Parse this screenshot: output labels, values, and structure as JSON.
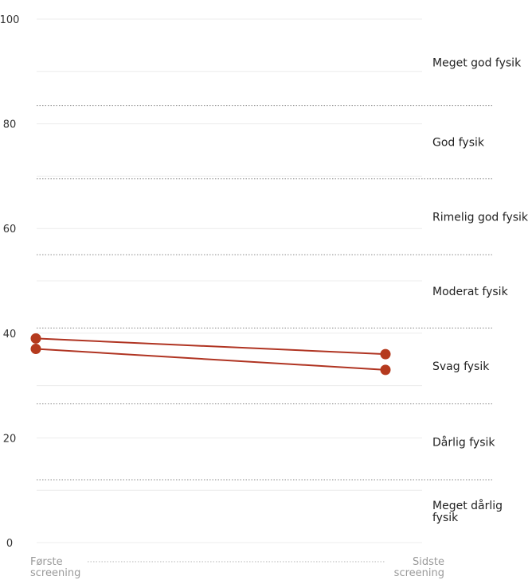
{
  "chart_data": {
    "type": "line",
    "ylim": [
      0,
      100
    ],
    "y_ticks": [
      "0",
      "20",
      "40",
      "60",
      "80",
      "100"
    ],
    "categories": [
      [
        "Første",
        "screening"
      ],
      [
        "Sidste",
        "screening"
      ]
    ],
    "series": [
      {
        "values": [
          39,
          36
        ]
      },
      {
        "values": [
          37,
          33
        ]
      }
    ],
    "bands": [
      {
        "label": [
          "Meget god fysik"
        ],
        "from": 83.5,
        "to": 100
      },
      {
        "label": [
          "God fysik"
        ],
        "from": 69.5,
        "to": 83.5
      },
      {
        "label": [
          "Rimelig god fysik"
        ],
        "from": 55,
        "to": 69.5
      },
      {
        "label": [
          "Moderat fysik"
        ],
        "from": 41,
        "to": 55
      },
      {
        "label": [
          "Svag fysik"
        ],
        "from": 26.5,
        "to": 41
      },
      {
        "label": [
          "Dårlig fysik"
        ],
        "from": 12,
        "to": 26.5
      },
      {
        "label": [
          "Meget dårlig",
          "fysik"
        ],
        "from": 0,
        "to": 12
      }
    ],
    "grid": true,
    "colors": {
      "line": "#b03422",
      "point": "#b53a1e",
      "grid": "#ececec",
      "band_divider": "#8a8a8a",
      "x_connector": "#b5b5b5"
    }
  }
}
